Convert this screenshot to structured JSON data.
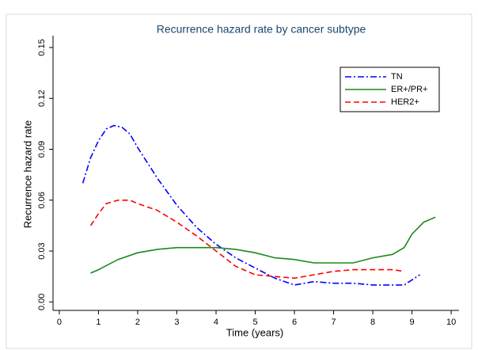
{
  "chart_data": {
    "type": "line",
    "title": "Recurrence hazard rate by cancer subtype",
    "x_label": "Time (years)",
    "y_label": "Recurrence hazard rate",
    "xlim": [
      -0.16,
      10.2
    ],
    "ylim": [
      -0.005,
      0.157
    ],
    "xticks": [
      0,
      1,
      2,
      3,
      4,
      5,
      6,
      7,
      8,
      9,
      10
    ],
    "yticks": [
      {
        "value": 0,
        "label": "0.00"
      },
      {
        "value": 0.03,
        "label": "0.03"
      },
      {
        "value": 0.06,
        "label": "0.06"
      },
      {
        "value": 0.09,
        "label": "0.09"
      },
      {
        "value": 0.12,
        "label": "0.12"
      },
      {
        "value": 0.15,
        "label": "0.15"
      }
    ],
    "grid": false,
    "legend": "upper right",
    "series": [
      {
        "name": "TN",
        "color": "#0000ff",
        "dash": "dashdot",
        "x": [
          0.6,
          0.8,
          1.0,
          1.2,
          1.4,
          1.6,
          1.8,
          2.0,
          2.5,
          3.0,
          3.5,
          4.0,
          4.5,
          5.0,
          5.5,
          6.0,
          6.5,
          7.0,
          7.5,
          8.0,
          8.5,
          8.8,
          9.0,
          9.2
        ],
        "values": [
          0.07,
          0.085,
          0.095,
          0.102,
          0.104,
          0.103,
          0.099,
          0.091,
          0.073,
          0.057,
          0.044,
          0.034,
          0.026,
          0.02,
          0.014,
          0.01,
          0.012,
          0.011,
          0.011,
          0.01,
          0.01,
          0.01,
          0.013,
          0.016
        ]
      },
      {
        "name": "ER+/PR+",
        "color": "#1a8a1a",
        "dash": "solid",
        "x": [
          0.8,
          1.0,
          1.5,
          2.0,
          2.5,
          3.0,
          3.5,
          4.0,
          4.5,
          5.0,
          5.5,
          6.0,
          6.5,
          7.0,
          7.5,
          8.0,
          8.5,
          8.8,
          9.0,
          9.3,
          9.6
        ],
        "values": [
          0.017,
          0.019,
          0.025,
          0.029,
          0.031,
          0.032,
          0.032,
          0.032,
          0.031,
          0.029,
          0.026,
          0.025,
          0.023,
          0.023,
          0.023,
          0.026,
          0.028,
          0.032,
          0.04,
          0.047,
          0.05
        ]
      },
      {
        "name": "HER2+",
        "color": "#ff0000",
        "dash": "dash",
        "x": [
          0.8,
          1.0,
          1.2,
          1.5,
          1.8,
          2.0,
          2.5,
          3.0,
          3.5,
          4.0,
          4.5,
          5.0,
          5.5,
          6.0,
          6.5,
          7.0,
          7.5,
          8.0,
          8.5,
          8.8
        ],
        "values": [
          0.045,
          0.052,
          0.058,
          0.06,
          0.06,
          0.058,
          0.054,
          0.047,
          0.039,
          0.03,
          0.021,
          0.016,
          0.015,
          0.014,
          0.016,
          0.018,
          0.019,
          0.019,
          0.019,
          0.018
        ]
      }
    ]
  }
}
